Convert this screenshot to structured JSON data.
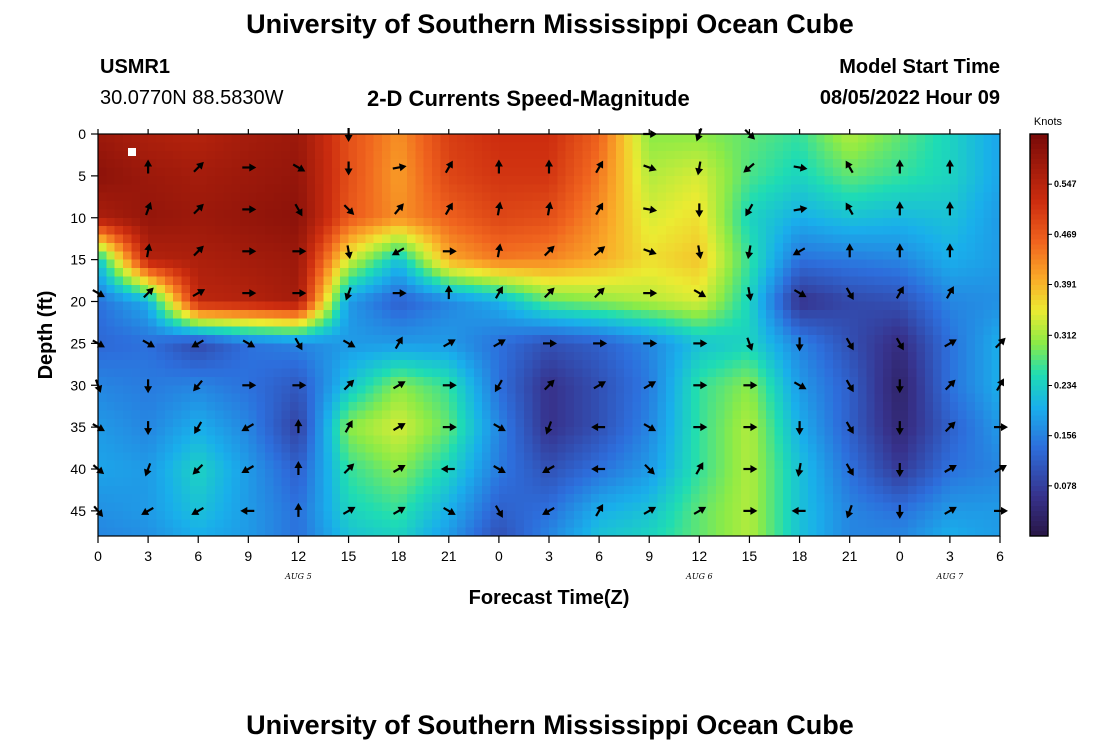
{
  "header": {
    "title": "University of Southern Mississippi Ocean Cube",
    "station_id": "USMR1",
    "station_coords": "30.0770N  88.5830W",
    "subtitle": "2-D Currents Speed-Magnitude",
    "model_start_label": "Model Start Time",
    "model_start_value": "08/05/2022 Hour 09",
    "repeat_title": "University of Southern Mississippi Ocean Cube"
  },
  "chart_data": {
    "type": "heatmap",
    "xlabel": "Forecast Time(Z)",
    "ylabel": "Depth (ft)",
    "x_hours_range": [
      0,
      54
    ],
    "y_range": [
      0,
      48
    ],
    "x_tick_labels": [
      "0",
      "3",
      "6",
      "9",
      "12",
      "15",
      "18",
      "21",
      "0",
      "3",
      "6",
      "9",
      "12",
      "15",
      "18",
      "21",
      "0",
      "3",
      "6"
    ],
    "y_ticks": [
      0,
      5,
      10,
      15,
      20,
      25,
      30,
      35,
      40,
      45
    ],
    "date_labels": [
      {
        "label": "AUG 5",
        "hour": 12
      },
      {
        "label": "AUG 6",
        "hour": 36
      },
      {
        "label": "AUG 7",
        "hour": 51
      }
    ],
    "colorbar": {
      "unit": "Knots",
      "range": [
        0.0,
        0.625
      ],
      "tick_values": [
        0.547,
        0.469,
        0.391,
        0.312,
        0.234,
        0.156,
        0.078
      ],
      "tick_labels": [
        "0.547",
        "0.469",
        "0.391",
        "0.312",
        "0.234",
        "0.156",
        "0.078"
      ]
    },
    "grid": false,
    "speed_hours": [
      0,
      3,
      6,
      9,
      12,
      15,
      18,
      21,
      24,
      27,
      30,
      33,
      36,
      39,
      42,
      45,
      48,
      51,
      54
    ],
    "speed_depths": [
      0,
      5,
      10,
      15,
      20,
      25,
      30,
      35,
      40,
      45,
      48
    ],
    "speed_knots": [
      [
        0.58,
        0.56,
        0.55,
        0.57,
        0.58,
        0.48,
        0.42,
        0.5,
        0.52,
        0.52,
        0.46,
        0.3,
        0.3,
        0.28,
        0.26,
        0.32,
        0.28,
        0.24,
        0.19
      ],
      [
        0.6,
        0.58,
        0.57,
        0.58,
        0.59,
        0.48,
        0.41,
        0.49,
        0.51,
        0.51,
        0.44,
        0.32,
        0.34,
        0.27,
        0.24,
        0.28,
        0.26,
        0.24,
        0.19
      ],
      [
        0.56,
        0.59,
        0.58,
        0.59,
        0.6,
        0.47,
        0.42,
        0.46,
        0.49,
        0.48,
        0.42,
        0.34,
        0.36,
        0.24,
        0.2,
        0.22,
        0.21,
        0.22,
        0.18
      ],
      [
        0.22,
        0.55,
        0.56,
        0.57,
        0.58,
        0.34,
        0.22,
        0.4,
        0.44,
        0.43,
        0.4,
        0.36,
        0.38,
        0.26,
        0.14,
        0.15,
        0.16,
        0.2,
        0.18
      ],
      [
        0.14,
        0.2,
        0.54,
        0.55,
        0.57,
        0.18,
        0.12,
        0.16,
        0.2,
        0.28,
        0.3,
        0.32,
        0.34,
        0.24,
        0.06,
        0.09,
        0.1,
        0.16,
        0.17
      ],
      [
        0.13,
        0.14,
        0.09,
        0.14,
        0.16,
        0.18,
        0.18,
        0.18,
        0.14,
        0.1,
        0.12,
        0.16,
        0.22,
        0.24,
        0.16,
        0.1,
        0.05,
        0.14,
        0.2
      ],
      [
        0.16,
        0.15,
        0.16,
        0.14,
        0.11,
        0.22,
        0.3,
        0.26,
        0.14,
        0.06,
        0.1,
        0.15,
        0.26,
        0.3,
        0.18,
        0.12,
        0.03,
        0.14,
        0.2
      ],
      [
        0.18,
        0.16,
        0.2,
        0.16,
        0.08,
        0.3,
        0.34,
        0.28,
        0.16,
        0.06,
        0.1,
        0.16,
        0.26,
        0.32,
        0.2,
        0.12,
        0.04,
        0.12,
        0.18
      ],
      [
        0.19,
        0.18,
        0.24,
        0.18,
        0.12,
        0.26,
        0.3,
        0.24,
        0.15,
        0.1,
        0.14,
        0.18,
        0.26,
        0.32,
        0.22,
        0.14,
        0.07,
        0.14,
        0.16
      ],
      [
        0.17,
        0.18,
        0.22,
        0.18,
        0.14,
        0.24,
        0.26,
        0.2,
        0.12,
        0.14,
        0.2,
        0.22,
        0.28,
        0.32,
        0.22,
        0.16,
        0.14,
        0.18,
        0.18
      ],
      [
        0.16,
        0.17,
        0.2,
        0.18,
        0.14,
        0.22,
        0.24,
        0.18,
        0.1,
        0.16,
        0.22,
        0.24,
        0.28,
        0.32,
        0.22,
        0.16,
        0.16,
        0.2,
        0.18
      ]
    ],
    "vector_hours": [
      0,
      3,
      6,
      9,
      12,
      15,
      18,
      21,
      24,
      27,
      30,
      33,
      36,
      39,
      42,
      45,
      48,
      51,
      54
    ],
    "vector_depths": [
      0,
      4,
      9,
      14,
      19,
      25,
      30,
      35,
      40,
      45
    ],
    "vector_direction_deg": [
      [
        null,
        null,
        null,
        null,
        null,
        180,
        null,
        null,
        null,
        null,
        null,
        90,
        200,
        135,
        null,
        null,
        null,
        null,
        null
      ],
      [
        null,
        0,
        45,
        90,
        120,
        180,
        80,
        30,
        0,
        0,
        30,
        110,
        190,
        230,
        100,
        330,
        0,
        0,
        null
      ],
      [
        null,
        20,
        45,
        90,
        150,
        135,
        40,
        30,
        10,
        10,
        30,
        100,
        180,
        210,
        80,
        330,
        0,
        0,
        null
      ],
      [
        null,
        10,
        45,
        90,
        90,
        170,
        240,
        90,
        10,
        45,
        50,
        110,
        170,
        190,
        240,
        0,
        0,
        0,
        null
      ],
      [
        120,
        45,
        60,
        90,
        90,
        200,
        90,
        0,
        30,
        45,
        45,
        90,
        120,
        170,
        120,
        150,
        30,
        30,
        null
      ],
      [
        120,
        120,
        240,
        120,
        150,
        120,
        30,
        60,
        60,
        90,
        90,
        90,
        90,
        160,
        180,
        150,
        150,
        60,
        45
      ],
      [
        160,
        180,
        220,
        90,
        90,
        45,
        60,
        90,
        210,
        45,
        60,
        60,
        90,
        90,
        120,
        150,
        180,
        45,
        30
      ],
      [
        120,
        180,
        210,
        240,
        0,
        30,
        60,
        90,
        120,
        200,
        270,
        120,
        90,
        90,
        180,
        150,
        180,
        45,
        90
      ],
      [
        130,
        200,
        225,
        240,
        0,
        45,
        60,
        270,
        120,
        240,
        270,
        135,
        30,
        90,
        190,
        150,
        180,
        60,
        60
      ],
      [
        140,
        240,
        240,
        270,
        0,
        60,
        60,
        120,
        150,
        240,
        30,
        60,
        60,
        90,
        270,
        200,
        180,
        60,
        90
      ]
    ]
  }
}
